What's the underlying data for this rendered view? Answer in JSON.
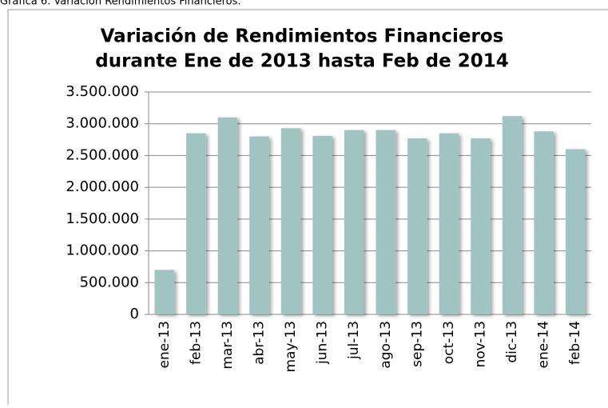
{
  "caption": "Gráfica 6. Variación Rendimientos Financieros.",
  "chart_data": {
    "type": "bar",
    "title": [
      "Variación de Rendimientos Financieros",
      "durante Ene de 2013 hasta Feb de 2014"
    ],
    "categories": [
      "ene-13",
      "feb-13",
      "mar-13",
      "abr-13",
      "may-13",
      "jun-13",
      "jul-13",
      "ago-13",
      "sep-13",
      "oct-13",
      "nov-13",
      "dic-13",
      "ene-14",
      "feb-14"
    ],
    "values": [
      700000,
      2850000,
      3100000,
      2800000,
      2930000,
      2810000,
      2900000,
      2900000,
      2770000,
      2850000,
      2770000,
      3120000,
      2880000,
      2600000
    ],
    "color": "#9fc4c2",
    "ylim": [
      0,
      3500000
    ],
    "yticks": [
      0,
      {
        "value": 500000,
        "label": "500.000"
      },
      {
        "value": 1000000,
        "label": "1.000.000"
      },
      {
        "value": 1500000,
        "label": "1.500.000"
      },
      {
        "value": 2000000,
        "label": "2.000.000"
      },
      {
        "value": 2500000,
        "label": "2.500.000"
      },
      {
        "value": 3000000,
        "label": "3.000.000"
      },
      {
        "value": 3500000,
        "label": "3.500.000"
      }
    ],
    "grid": true
  }
}
